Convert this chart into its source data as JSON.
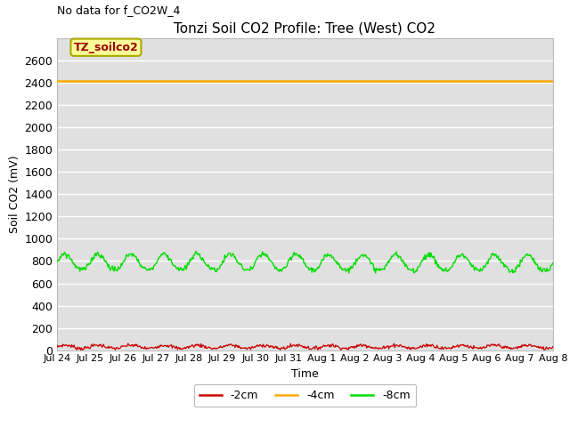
{
  "title": "Tonzi Soil CO2 Profile: Tree (West) CO2",
  "no_data_label": "No data for f_CO2W_4",
  "legend_box_label": "TZ_soilco2",
  "ylabel": "Soil CO2 (mV)",
  "xlabel": "Time",
  "ylim": [
    0,
    2800
  ],
  "yticks": [
    0,
    200,
    400,
    600,
    800,
    1000,
    1200,
    1400,
    1600,
    1800,
    2000,
    2200,
    2400,
    2600
  ],
  "xtick_labels": [
    "Jul 24",
    "Jul 25",
    "Jul 26",
    "Jul 27",
    "Jul 28",
    "Jul 29",
    "Jul 30",
    "Jul 31",
    "Aug 1",
    "Aug 2",
    "Aug 3",
    "Aug 4",
    "Aug 5",
    "Aug 6",
    "Aug 7",
    "Aug 8"
  ],
  "bg_color": "#e0e0e0",
  "line_2cm_color": "#cc0000",
  "line_4cm_color": "#ffaa00",
  "line_8cm_color": "#00dd00",
  "line_2cm_label": "-2cm",
  "line_4cm_label": "-4cm",
  "line_8cm_label": "-8cm",
  "orange_value": 2415,
  "red_mean": 30,
  "green_mean": 840,
  "n_points": 672,
  "legend_box_bg": "#ffff99",
  "legend_box_edge": "#aaa800",
  "grid_color": "#f0f0f0"
}
